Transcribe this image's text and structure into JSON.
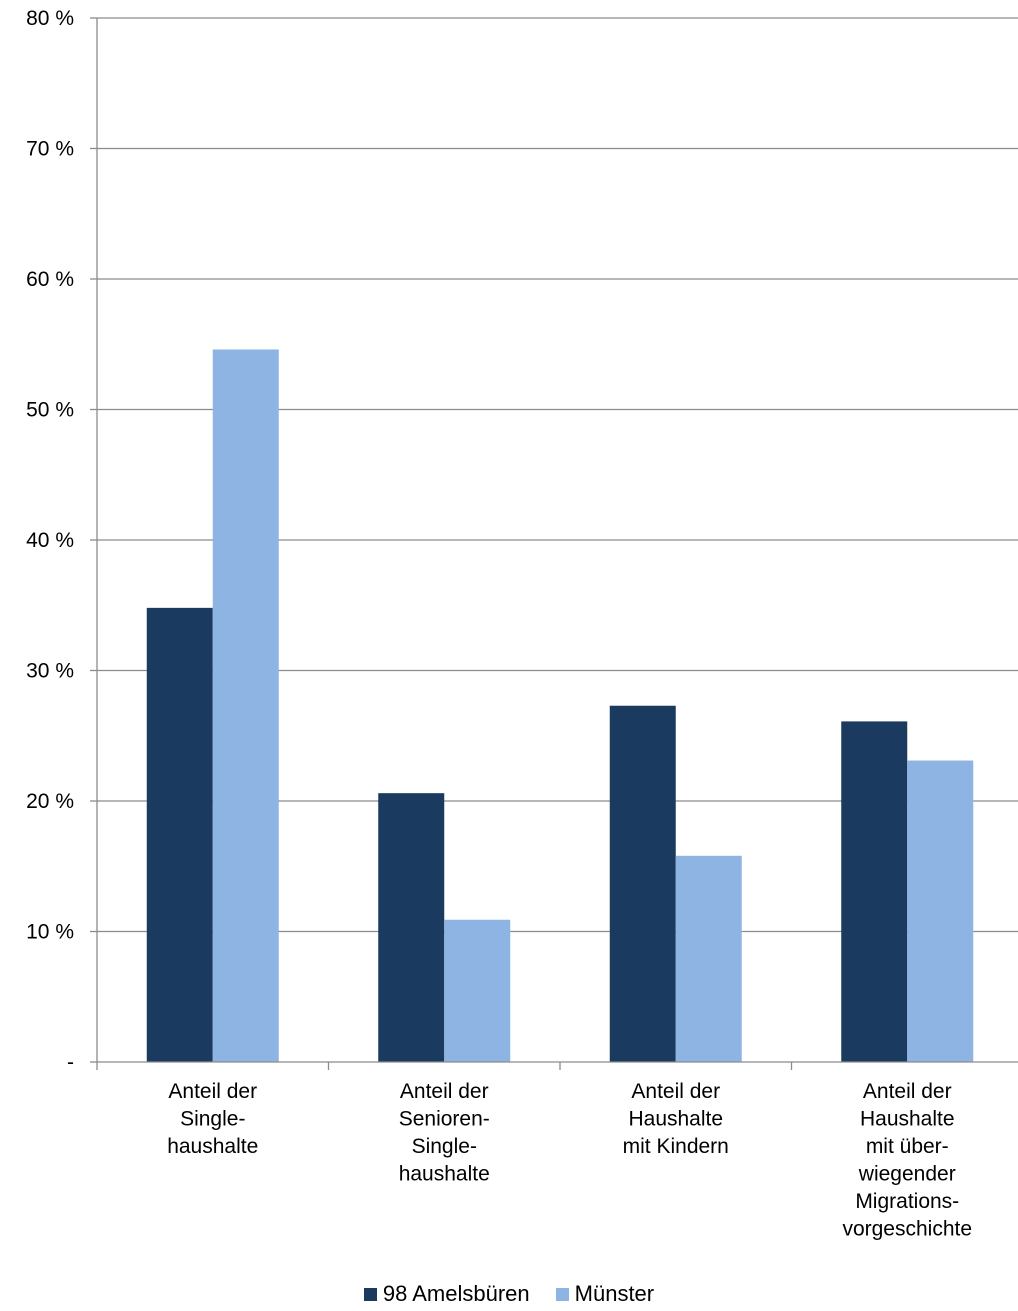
{
  "chart_data": {
    "type": "bar",
    "title": "",
    "xlabel": "",
    "ylabel": "",
    "ylim": [
      0,
      80
    ],
    "yticks": [
      {
        "value": 0,
        "label": "-"
      },
      {
        "value": 10,
        "label": "10 %"
      },
      {
        "value": 20,
        "label": "20 %"
      },
      {
        "value": 30,
        "label": "30 %"
      },
      {
        "value": 40,
        "label": "40 %"
      },
      {
        "value": 50,
        "label": "50 %"
      },
      {
        "value": 60,
        "label": "60 %"
      },
      {
        "value": 70,
        "label": "70 %"
      },
      {
        "value": 80,
        "label": "80 %"
      }
    ],
    "grid": true,
    "legend_position": "bottom",
    "categories": [
      [
        "Anteil der",
        "Single-",
        "haushalte"
      ],
      [
        "Anteil der",
        "Senioren-",
        "Single-",
        "haushalte"
      ],
      [
        "Anteil der",
        "Haushalte",
        "mit Kindern"
      ],
      [
        "Anteil der",
        "Haushalte",
        "mit über-",
        "wiegender",
        "Migrations-",
        "vorgeschichte"
      ]
    ],
    "series": [
      {
        "name": "98 Amelsbüren",
        "color": "#1b3a5f",
        "values": [
          34.8,
          20.6,
          27.3,
          26.1
        ]
      },
      {
        "name": "Münster",
        "color": "#8eb4e3",
        "values": [
          54.6,
          10.9,
          15.8,
          23.1
        ]
      }
    ]
  }
}
